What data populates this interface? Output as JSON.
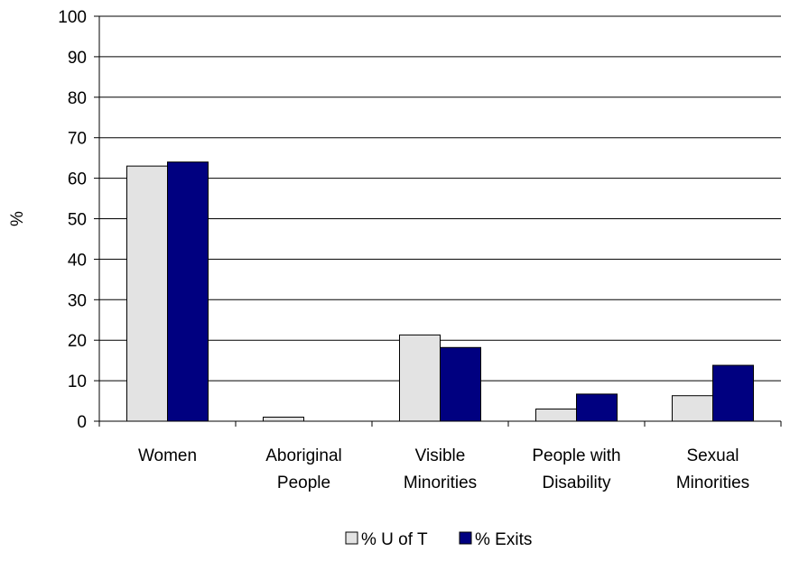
{
  "chart_data": {
    "type": "bar",
    "ylabel": "%",
    "xlabel": "",
    "ylim": [
      0,
      100
    ],
    "yticks": [
      "0",
      "10",
      "20",
      "30",
      "40",
      "50",
      "60",
      "70",
      "80",
      "90",
      "100"
    ],
    "categories": [
      [
        "Women"
      ],
      [
        "Aboriginal",
        "People"
      ],
      [
        "Visible",
        "Minorities"
      ],
      [
        "People with",
        "Disability"
      ],
      [
        "Sexual",
        "Minorities"
      ]
    ],
    "series": [
      {
        "name": "% U of T",
        "color": "#e3e3e3",
        "values": [
          63,
          1,
          21.3,
          3,
          6.3
        ]
      },
      {
        "name": "% Exits",
        "color": "#000080",
        "values": [
          64,
          0,
          18.2,
          6.7,
          13.8
        ]
      }
    ],
    "gridlines": true,
    "legend_position": "bottom-center"
  }
}
